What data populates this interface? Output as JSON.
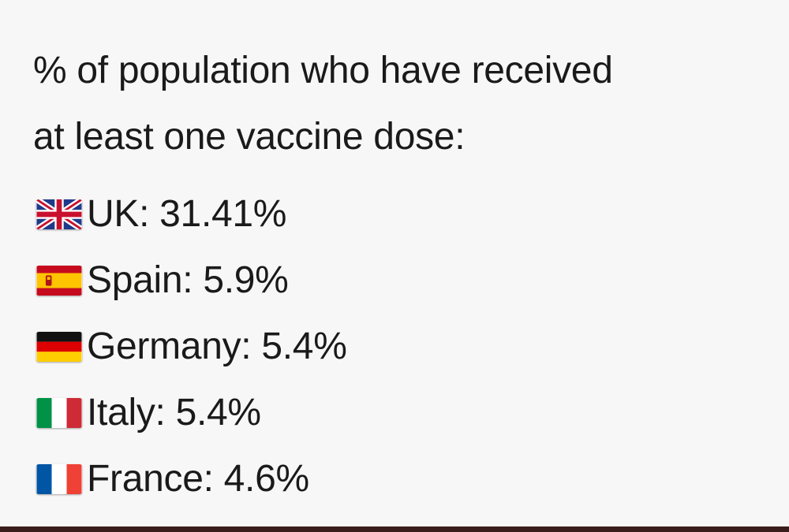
{
  "title": {
    "line1": "% of population who have received",
    "line2": "at least one vaccine dose:"
  },
  "rows": [
    {
      "flag_icon": "uk-flag-icon",
      "text": "UK: 31.41%"
    },
    {
      "flag_icon": "spain-flag-icon",
      "text": "Spain: 5.9%"
    },
    {
      "flag_icon": "germany-flag-icon",
      "text": "Germany: 5.4%"
    },
    {
      "flag_icon": "italy-flag-icon",
      "text": "Italy: 5.4%"
    },
    {
      "flag_icon": "france-flag-icon",
      "text": "France: 4.6%"
    }
  ],
  "colors": {
    "background": "#f8f7f7",
    "text": "#1a1a1a",
    "bottom_rule": "#3a1c1c"
  }
}
